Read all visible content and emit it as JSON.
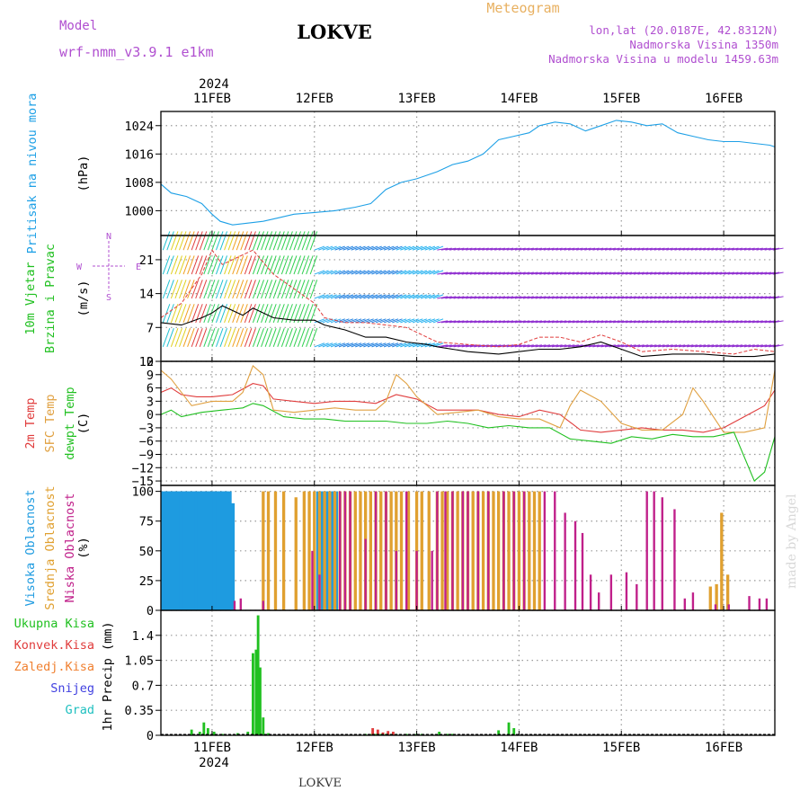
{
  "header": {
    "title": "LOKVE",
    "model_label": "Model",
    "model_name": "wrf-nmm_v3.9.1 e1km",
    "subtitle": "Meteogram",
    "coords": "lon,lat (20.0187E, 42.8312N)",
    "elevation": "Nadmorska Visina 1350m",
    "model_elevation": "Nadmorska Visina u modelu 1459.63m",
    "footer": "LOKVE",
    "watermark": "made by Angel",
    "year": "2024"
  },
  "colors": {
    "pressure": "#1ea0e6",
    "wind_speed": "#000000",
    "gust": "#e03c3c",
    "t2m": "#e03c3c",
    "tsfc": "#e0a040",
    "dewpt": "#20c020",
    "cloud_high": "#1e9be0",
    "cloud_mid": "#e0a030",
    "cloud_low": "#c0208a",
    "precip_total": "#20c020",
    "precip_conv": "#e03c3c",
    "precip_frz": "#f08030",
    "snow": "#4040e0",
    "graupel": "#20c0c0"
  },
  "chart_data": {
    "type": "line",
    "x_axis": {
      "start": "2024-02-10T12:00",
      "end": "2024-02-16T12:00",
      "tick_labels": [
        "11FEB",
        "12FEB",
        "13FEB",
        "14FEB",
        "15FEB",
        "16FEB"
      ],
      "grid": true
    },
    "panels": [
      {
        "id": "pressure",
        "ylabel_lines": [
          "Pritisak na nivou mora"
        ],
        "unit": "(hPa)",
        "ylim": [
          993,
          1028
        ],
        "yticks": [
          1000,
          1008,
          1016,
          1024
        ],
        "series": [
          {
            "key": "mslp",
            "color_key": "pressure",
            "x": [
              0,
              0.1,
              0.25,
              0.4,
              0.5,
              0.58,
              0.7,
              0.85,
              1.0,
              1.15,
              1.3,
              1.5,
              1.7,
              1.9,
              2.05,
              2.2,
              2.35,
              2.5,
              2.7,
              2.85,
              3.0,
              3.15,
              3.3,
              3.45,
              3.6,
              3.7,
              3.85,
              4.0,
              4.15,
              4.3,
              4.45,
              4.6,
              4.75,
              4.9,
              5.05,
              5.2,
              5.35,
              5.5,
              5.65,
              5.8,
              5.95,
              6.0
            ],
            "y": [
              1007.5,
              1005,
              1004,
              1002,
              999,
              997,
              996,
              996.5,
              997,
              998,
              999,
              999.5,
              1000,
              1001,
              1002,
              1006,
              1008,
              1009,
              1011,
              1013,
              1014,
              1016,
              1020,
              1021,
              1022,
              1024,
              1025,
              1024.5,
              1022.5,
              1024,
              1025.5,
              1025,
              1024,
              1024.5,
              1022,
              1021,
              1020,
              1019.5,
              1019.5,
              1019,
              1018.5,
              1018
            ]
          }
        ]
      },
      {
        "id": "wind",
        "ylabel_lines": [
          "10m Vjetar",
          "Brzina i Pravac"
        ],
        "unit": "(m/s)",
        "ylim": [
          0,
          26
        ],
        "yticks": [
          0,
          7,
          14,
          21
        ],
        "compass": [
          "N",
          "S",
          "W",
          "E"
        ],
        "series": [
          {
            "key": "speed",
            "color_key": "wind_speed",
            "x": [
              0,
              0.2,
              0.4,
              0.5,
              0.6,
              0.8,
              0.9,
              1.1,
              1.3,
              1.5,
              1.6,
              1.8,
              2.0,
              2.2,
              2.4,
              2.6,
              2.7,
              3.0,
              3.3,
              3.5,
              3.7,
              3.9,
              4.1,
              4.3,
              4.5,
              4.7,
              5.0,
              5.3,
              5.6,
              5.8,
              6.0
            ],
            "y": [
              8,
              7.5,
              9,
              10,
              11.5,
              9.5,
              11,
              9,
              8.5,
              8.5,
              7.5,
              6.5,
              5,
              5,
              4,
              3.5,
              3,
              2,
              1.5,
              2,
              2.5,
              2.5,
              3,
              4,
              2.5,
              1,
              1.5,
              1.5,
              1,
              1,
              1.5
            ]
          },
          {
            "key": "gust",
            "color_key": "gust",
            "x": [
              0,
              0.2,
              0.4,
              0.5,
              0.6,
              0.8,
              0.9,
              1.1,
              1.3,
              1.5,
              1.6,
              1.8,
              2.0,
              2.2,
              2.4,
              2.6,
              2.7,
              3.0,
              3.3,
              3.5,
              3.7,
              3.9,
              4.1,
              4.3,
              4.5,
              4.7,
              5.0,
              5.3,
              5.6,
              5.8,
              6.0
            ],
            "y": [
              9,
              12,
              18,
              23,
              20,
              22,
              23,
              18,
              15,
              12,
              9,
              8,
              8,
              7.5,
              7,
              5,
              4,
              3.5,
              3,
              3.5,
              5,
              5,
              4,
              5.5,
              4,
              2,
              2.5,
              2,
              1.5,
              2.5,
              2
            ]
          }
        ]
      },
      {
        "id": "temperature",
        "ylabel_lines": [
          "2m Temp",
          "SFC Temp",
          "dewpt Temp"
        ],
        "ylabel_colors": [
          "t2m",
          "tsfc",
          "dewpt"
        ],
        "unit": "(C)",
        "ylim": [
          -16,
          12
        ],
        "yticks": [
          -15,
          -12,
          -9,
          -6,
          -3,
          0,
          3,
          6,
          9,
          12
        ],
        "series": [
          {
            "key": "t2m",
            "color_key": "t2m",
            "x": [
              0,
              0.1,
              0.2,
              0.35,
              0.5,
              0.7,
              0.9,
              1.0,
              1.1,
              1.3,
              1.5,
              1.7,
              1.9,
              2.1,
              2.2,
              2.3,
              2.5,
              2.7,
              2.9,
              3.1,
              3.3,
              3.5,
              3.7,
              3.9,
              4.1,
              4.3,
              4.5,
              4.7,
              4.9,
              5.1,
              5.3,
              5.5,
              5.7,
              5.9,
              6.0
            ],
            "y": [
              5,
              6,
              4.5,
              4,
              4,
              4.5,
              7,
              6.5,
              3.5,
              3,
              2.5,
              3,
              3,
              2.5,
              3.5,
              4.5,
              3.5,
              1,
              1,
              1,
              0,
              -0.5,
              1,
              0,
              -3.5,
              -4,
              -3.5,
              -3,
              -3.5,
              -3.5,
              -4,
              -3,
              -0.5,
              2,
              5.5
            ]
          },
          {
            "key": "tsfc",
            "color_key": "tsfc",
            "x": [
              0,
              0.1,
              0.3,
              0.5,
              0.7,
              0.8,
              0.9,
              1.0,
              1.1,
              1.3,
              1.5,
              1.7,
              1.9,
              2.1,
              2.2,
              2.3,
              2.4,
              2.5,
              2.7,
              2.9,
              3.1,
              3.3,
              3.5,
              3.7,
              3.9,
              4.0,
              4.1,
              4.3,
              4.5,
              4.7,
              4.9,
              5.1,
              5.2,
              5.3,
              5.5,
              5.7,
              5.9,
              6.0
            ],
            "y": [
              10,
              8,
              2,
              3,
              3,
              5,
              11,
              9,
              1,
              0.5,
              1,
              1.5,
              1,
              1,
              3,
              9,
              7,
              4,
              0,
              0.5,
              1,
              -0.5,
              -1,
              -1,
              -3,
              2,
              5.5,
              3,
              -2,
              -3.5,
              -3.5,
              0,
              6,
              3,
              -4,
              -4,
              -3,
              10
            ]
          },
          {
            "key": "dewpt",
            "color_key": "dewpt",
            "x": [
              0,
              0.1,
              0.2,
              0.4,
              0.6,
              0.8,
              0.9,
              1.0,
              1.2,
              1.4,
              1.6,
              1.8,
              2.0,
              2.2,
              2.4,
              2.6,
              2.8,
              3.0,
              3.2,
              3.4,
              3.6,
              3.8,
              4.0,
              4.2,
              4.4,
              4.6,
              4.8,
              5.0,
              5.2,
              5.4,
              5.6,
              5.8,
              5.9,
              6.0
            ],
            "y": [
              0,
              1,
              -0.5,
              0.5,
              1,
              1.5,
              2.5,
              2,
              -0.5,
              -1,
              -1,
              -1.5,
              -1.5,
              -1.5,
              -2,
              -2,
              -1.5,
              -2,
              -3,
              -2.5,
              -3,
              -3,
              -5.5,
              -6,
              -6.5,
              -5,
              -5.5,
              -4.5,
              -5,
              -5,
              -4,
              -15,
              -13,
              -5
            ]
          }
        ]
      },
      {
        "id": "cloud",
        "ylabel_lines": [
          "Visoka Oblacnost",
          "Srednja Oblacnost",
          "Niska Oblacnost"
        ],
        "ylabel_colors": [
          "cloud_high",
          "cloud_mid",
          "cloud_low"
        ],
        "unit": "(%)",
        "ylim": [
          0,
          105
        ],
        "yticks": [
          0,
          25,
          50,
          75,
          100
        ],
        "bars": [
          {
            "key": "high",
            "color_key": "cloud_high",
            "width_hours": 1.5,
            "x": [
              0.03,
              0.06,
              0.09,
              0.12,
              0.15,
              0.18,
              0.21,
              0.24,
              0.27,
              0.3,
              0.33,
              0.36,
              0.39,
              0.42,
              0.45,
              0.48,
              0.51,
              0.54,
              0.57,
              0.6,
              0.63,
              0.66,
              0.69,
              1.55,
              1.6,
              1.65,
              1.7
            ],
            "y": [
              100,
              100,
              100,
              100,
              100,
              100,
              100,
              100,
              100,
              100,
              100,
              100,
              100,
              100,
              100,
              100,
              100,
              100,
              100,
              100,
              100,
              100,
              90,
              100,
              100,
              100,
              100
            ]
          },
          {
            "key": "mid",
            "color_key": "cloud_mid",
            "width_hours": 0.7,
            "x": [
              1.0,
              1.05,
              1.12,
              1.2,
              1.32,
              1.4,
              1.45,
              1.5,
              1.55,
              1.6,
              1.65,
              1.7,
              1.75,
              1.8,
              1.85,
              1.9,
              1.95,
              2.0,
              2.05,
              2.1,
              2.15,
              2.2,
              2.25,
              2.3,
              2.35,
              2.42,
              2.5,
              2.55,
              2.62,
              2.7,
              2.75,
              2.8,
              2.85,
              2.9,
              2.95,
              3.0,
              3.05,
              3.1,
              3.15,
              3.2,
              3.25,
              3.3,
              3.35,
              3.4,
              3.45,
              3.5,
              3.55,
              3.6,
              3.65,
              3.7,
              5.37,
              5.43,
              5.48,
              5.54
            ],
            "y": [
              100,
              100,
              100,
              100,
              95,
              100,
              100,
              100,
              100,
              100,
              100,
              100,
              100,
              100,
              100,
              100,
              100,
              100,
              100,
              100,
              100,
              100,
              100,
              100,
              100,
              100,
              100,
              100,
              100,
              100,
              100,
              100,
              100,
              100,
              100,
              100,
              100,
              100,
              100,
              100,
              100,
              100,
              100,
              100,
              100,
              100,
              100,
              100,
              100,
              100,
              20,
              22,
              82,
              30
            ]
          },
          {
            "key": "low",
            "color_key": "cloud_low",
            "width_hours": 0.5,
            "x": [
              0.72,
              0.78,
              1.0,
              1.48,
              1.55,
              1.75,
              1.8,
              1.85,
              2.0,
              2.1,
              2.2,
              2.3,
              2.4,
              2.5,
              2.65,
              2.7,
              2.78,
              2.85,
              2.95,
              3.0,
              3.1,
              3.2,
              3.35,
              3.45,
              3.55,
              3.75,
              3.85,
              3.95,
              4.05,
              4.12,
              4.2,
              4.28,
              4.4,
              4.55,
              4.65,
              4.75,
              4.82,
              4.9,
              5.02,
              5.12,
              5.2,
              5.42,
              5.55,
              5.75,
              5.85,
              5.92
            ],
            "y": [
              8,
              10,
              8,
              50,
              30,
              100,
              100,
              100,
              60,
              100,
              100,
              50,
              100,
              50,
              50,
              100,
              100,
              100,
              100,
              100,
              100,
              100,
              100,
              100,
              100,
              100,
              100,
              82,
              75,
              65,
              30,
              15,
              30,
              32,
              22,
              100,
              100,
              95,
              85,
              10,
              15,
              5,
              5,
              12,
              10,
              10
            ]
          }
        ]
      },
      {
        "id": "precip",
        "ylabel_lines": [
          "1hr Precip (mm)"
        ],
        "side_labels": [
          "Ukupna Kisa",
          "Konvek.Kisa",
          "Zaledj.Kisa",
          "Snijeg",
          "Grad"
        ],
        "side_colors": [
          "precip_total",
          "precip_conv",
          "precip_frz",
          "snow",
          "graupel"
        ],
        "ylim": [
          0,
          1.75
        ],
        "yticks": [
          0,
          0.35,
          0.7,
          1.05,
          1.4
        ],
        "ytick_labels": [
          "0",
          "0.35",
          "0.7",
          "1.05",
          "1.4"
        ],
        "bars": [
          {
            "key": "total",
            "color_key": "precip_total",
            "width_hours": 0.6,
            "x": [
              0.3,
              0.38,
              0.42,
              0.46,
              0.52,
              0.6,
              0.75,
              0.85,
              0.9,
              0.93,
              0.95,
              0.97,
              1.0,
              1.05,
              2.0,
              2.05,
              2.1,
              2.15,
              2.2,
              2.25,
              2.3,
              2.4,
              2.5,
              2.55,
              2.65,
              2.72,
              2.8,
              2.85,
              3.3,
              3.4,
              3.45
            ],
            "y": [
              0.08,
              0.05,
              0.18,
              0.1,
              0.05,
              0.02,
              0.03,
              0.05,
              1.15,
              1.2,
              1.68,
              0.95,
              0.25,
              0.03,
              0.02,
              0.02,
              0.02,
              0.02,
              0.02,
              0.02,
              0.02,
              0.02,
              0.02,
              0.02,
              0.02,
              0.05,
              0.02,
              0.02,
              0.07,
              0.18,
              0.1
            ]
          },
          {
            "key": "conv",
            "color_key": "precip_conv",
            "width_hours": 0.6,
            "x": [
              2.07,
              2.12,
              2.17,
              2.22,
              2.27
            ],
            "y": [
              0.1,
              0.08,
              0.04,
              0.06,
              0.05
            ]
          }
        ]
      }
    ]
  }
}
